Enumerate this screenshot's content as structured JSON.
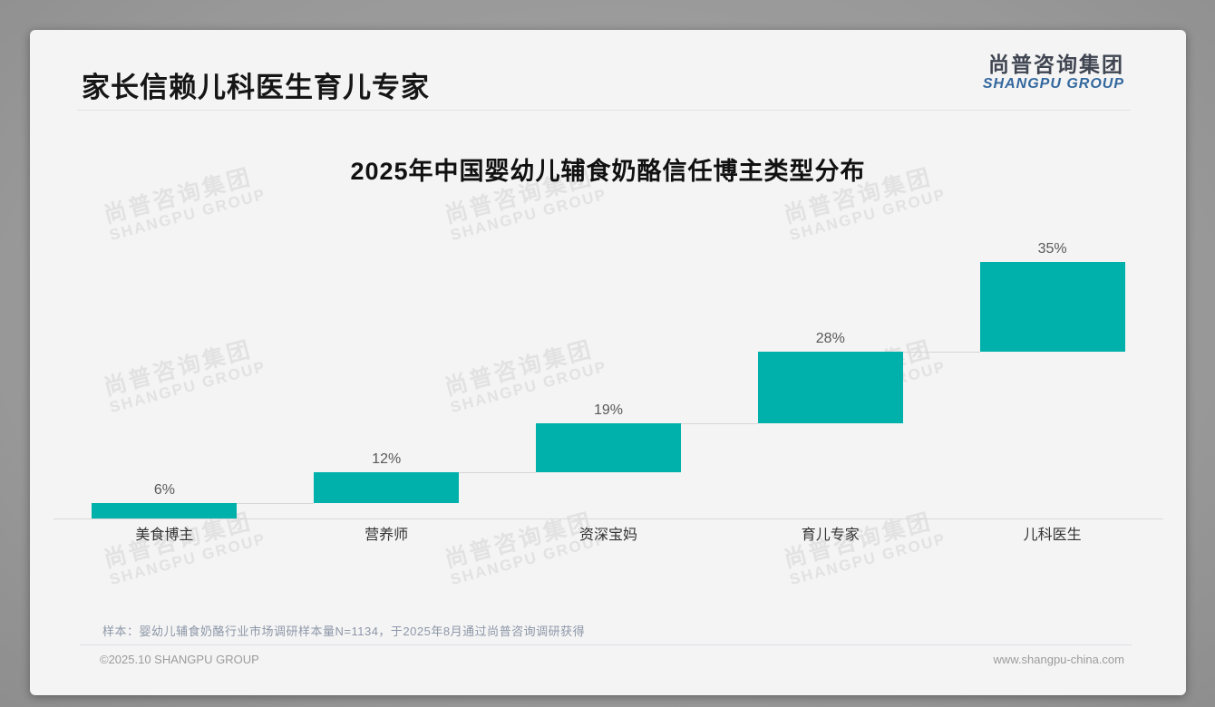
{
  "page": {
    "title": "家长信赖儿科医生育儿专家",
    "logo": {
      "cn": "尚普咨询集团",
      "en": "SHANGPU GROUP"
    },
    "watermark": {
      "line1": "尚普咨询集团",
      "line2": "SHANGPU GROUP"
    },
    "footnote": "样本：婴幼儿辅食奶酪行业市场调研样本量N=1134，于2025年8月通过尚普咨询调研获得",
    "footer": {
      "left": "©2025.10 SHANGPU GROUP",
      "right": "www.shangpu-china.com"
    }
  },
  "colors": {
    "bar": "#00b0aa",
    "logo_blue": "#33689e",
    "logo_dark": "#3f4551",
    "connector": "#d6d6d6",
    "card_bg": "#f4f4f4",
    "outer_bg": "#9a9a9a"
  },
  "chart_data": {
    "type": "bar",
    "subtype": "waterfall-stepped",
    "title": "2025年中国婴幼儿辅食奶酪信任博主类型分布",
    "categories": [
      "美食博主",
      "营养师",
      "资深宝妈",
      "育儿专家",
      "儿科医生"
    ],
    "values": [
      6,
      12,
      19,
      28,
      35
    ],
    "labels": [
      "6%",
      "12%",
      "19%",
      "28%",
      "35%"
    ],
    "xlabel": "",
    "ylabel": "",
    "ylim": [
      0,
      100
    ],
    "grid": false,
    "legend": false,
    "bar_color": "#00b0aa",
    "cumulative_starts": [
      0,
      6,
      18,
      37,
      65
    ]
  }
}
